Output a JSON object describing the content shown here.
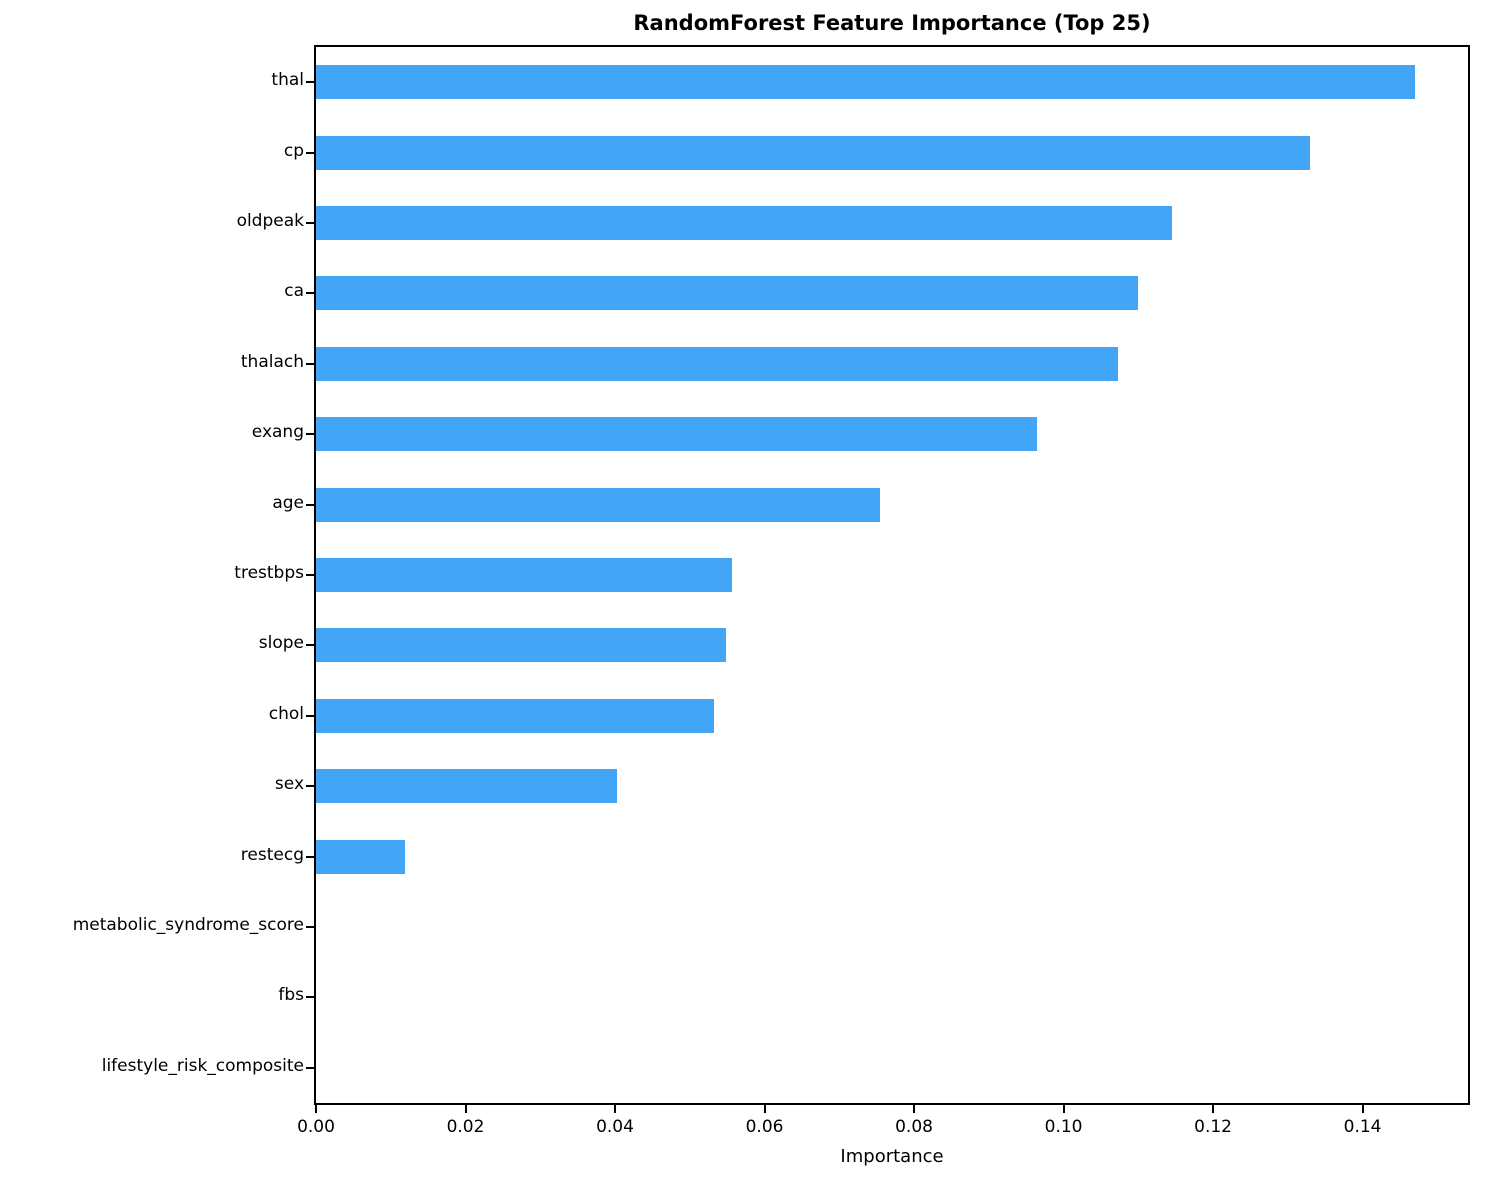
{
  "chart_data": {
    "type": "bar",
    "orientation": "horizontal",
    "title": "RandomForest Feature Importance (Top 25)",
    "xlabel": "Importance",
    "ylabel": "",
    "grid": false,
    "legend": "none",
    "bar_color": "#42a5f5",
    "axis_color": "#000000",
    "xlim": [
      0,
      0.1541
    ],
    "xticks": [
      0.0,
      0.02,
      0.04,
      0.06,
      0.08,
      0.1,
      0.12,
      0.14
    ],
    "xtick_labels": [
      "0.00",
      "0.02",
      "0.04",
      "0.06",
      "0.08",
      "0.10",
      "0.12",
      "0.14"
    ],
    "categories": [
      "thal",
      "cp",
      "oldpeak",
      "ca",
      "thalach",
      "exang",
      "age",
      "trestbps",
      "slope",
      "chol",
      "sex",
      "restecg",
      "metabolic_syndrome_score",
      "fbs",
      "lifestyle_risk_composite"
    ],
    "values": [
      0.147,
      0.133,
      0.1145,
      0.11,
      0.1073,
      0.0964,
      0.0755,
      0.0556,
      0.0548,
      0.0532,
      0.0403,
      0.0119,
      0.0,
      0.0,
      0.0
    ]
  }
}
